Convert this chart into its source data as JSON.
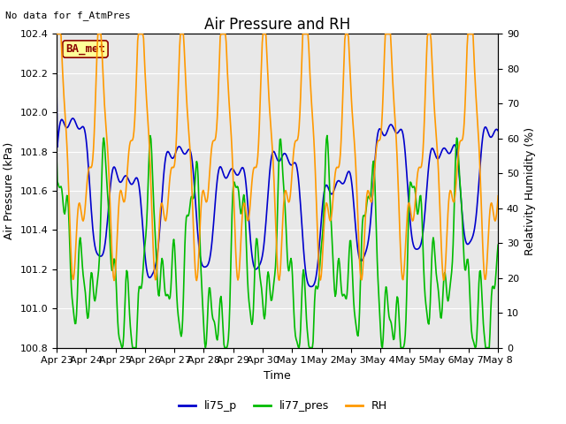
{
  "title": "Air Pressure and RH",
  "subtitle": "No data for f_AtmPres",
  "xlabel": "Time",
  "ylabel_left": "Air Pressure (kPa)",
  "ylabel_right": "Relativity Humidity (%)",
  "ylim_left": [
    100.8,
    102.4
  ],
  "ylim_right": [
    0,
    90
  ],
  "yticks_left": [
    100.8,
    101.0,
    101.2,
    101.4,
    101.6,
    101.8,
    102.0,
    102.2,
    102.4
  ],
  "yticks_right": [
    0,
    10,
    20,
    30,
    40,
    50,
    60,
    70,
    80,
    90
  ],
  "xtick_labels": [
    "Apr 23",
    "Apr 24",
    "Apr 25",
    "Apr 26",
    "Apr 27",
    "Apr 28",
    "Apr 29",
    "Apr 30",
    "May 1",
    "May 2",
    "May 3",
    "May 4",
    "May 5",
    "May 6",
    "May 7",
    "May 8"
  ],
  "line_colors": {
    "li75_p": "#0000cc",
    "li77_pres": "#00bb00",
    "RH": "#ff9900"
  },
  "line_widths": {
    "li75_p": 1.2,
    "li77_pres": 1.2,
    "RH": 1.2
  },
  "watermark_text": "BA_met",
  "watermark_color": "#8B0000",
  "watermark_bg": "#FFFF99",
  "plot_bg": "#e8e8e8",
  "fig_bg": "#ffffff",
  "title_fontsize": 12,
  "label_fontsize": 9,
  "tick_fontsize": 8,
  "subtitle_fontsize": 8,
  "legend_fontsize": 9
}
